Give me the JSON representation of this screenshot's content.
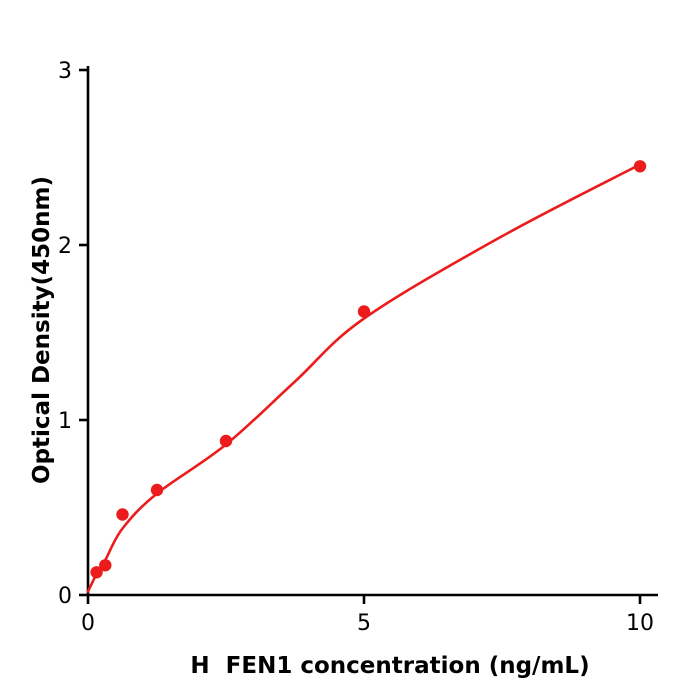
{
  "chart_data": {
    "type": "scatter",
    "title": "",
    "xlabel": "H  FEN1 concentration (ng/mL)",
    "ylabel": "Optical Density(450nm)",
    "x": [
      0.156,
      0.3125,
      0.625,
      1.25,
      2.5,
      5,
      10
    ],
    "y": [
      0.13,
      0.17,
      0.46,
      0.6,
      0.88,
      1.62,
      2.45
    ],
    "fit_curve": [
      [
        0,
        0.02
      ],
      [
        0.156,
        0.12
      ],
      [
        0.3125,
        0.2
      ],
      [
        0.625,
        0.38
      ],
      [
        1.25,
        0.58
      ],
      [
        2.5,
        0.86
      ],
      [
        3.75,
        1.22
      ],
      [
        5,
        1.58
      ],
      [
        7.5,
        2.05
      ],
      [
        10,
        2.46
      ]
    ],
    "xlim": [
      0,
      10
    ],
    "ylim": [
      0,
      3
    ],
    "xticks": [
      0,
      5,
      10
    ],
    "yticks": [
      0,
      1,
      2,
      3
    ],
    "grid": false,
    "marker": "circle",
    "point_color": "#ec1c1c",
    "line_color": "#ec1c1c",
    "axis_color": "#000000",
    "background": "#ffffff"
  }
}
